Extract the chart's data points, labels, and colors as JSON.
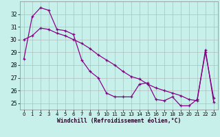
{
  "title": "",
  "xlabel": "Windchill (Refroidissement éolien,°C)",
  "bg_color": "#c8f0eb",
  "line_color": "#880088",
  "grid_color": "#b0b0b0",
  "xlim": [
    -0.5,
    23.5
  ],
  "ylim": [
    24.5,
    33.0
  ],
  "yticks": [
    25,
    26,
    27,
    28,
    29,
    30,
    31,
    32
  ],
  "xticks": [
    0,
    1,
    2,
    3,
    4,
    5,
    6,
    7,
    8,
    9,
    10,
    11,
    12,
    13,
    14,
    15,
    16,
    17,
    18,
    19,
    20,
    21,
    22,
    23
  ],
  "series1_x": [
    0,
    1,
    2,
    3,
    4,
    5,
    6,
    7,
    8,
    9,
    10,
    11,
    12,
    13,
    14,
    15,
    16,
    17,
    18,
    19,
    20,
    21,
    22,
    23
  ],
  "series1_y": [
    28.5,
    31.8,
    32.5,
    32.3,
    30.8,
    30.7,
    30.4,
    28.4,
    27.5,
    27.0,
    25.8,
    25.5,
    25.5,
    25.5,
    26.5,
    26.6,
    25.3,
    25.2,
    25.5,
    24.8,
    24.8,
    25.3,
    29.0,
    25.4
  ],
  "series2_x": [
    0,
    1,
    2,
    3,
    4,
    5,
    6,
    7,
    8,
    9,
    10,
    11,
    12,
    13,
    14,
    15,
    16,
    17,
    18,
    19,
    20,
    21,
    22,
    23
  ],
  "series2_y": [
    30.0,
    30.3,
    30.9,
    30.8,
    30.5,
    30.3,
    30.0,
    29.7,
    29.3,
    28.8,
    28.4,
    28.0,
    27.5,
    27.1,
    26.9,
    26.5,
    26.2,
    26.0,
    25.8,
    25.6,
    25.3,
    25.2,
    29.2,
    25.1
  ]
}
